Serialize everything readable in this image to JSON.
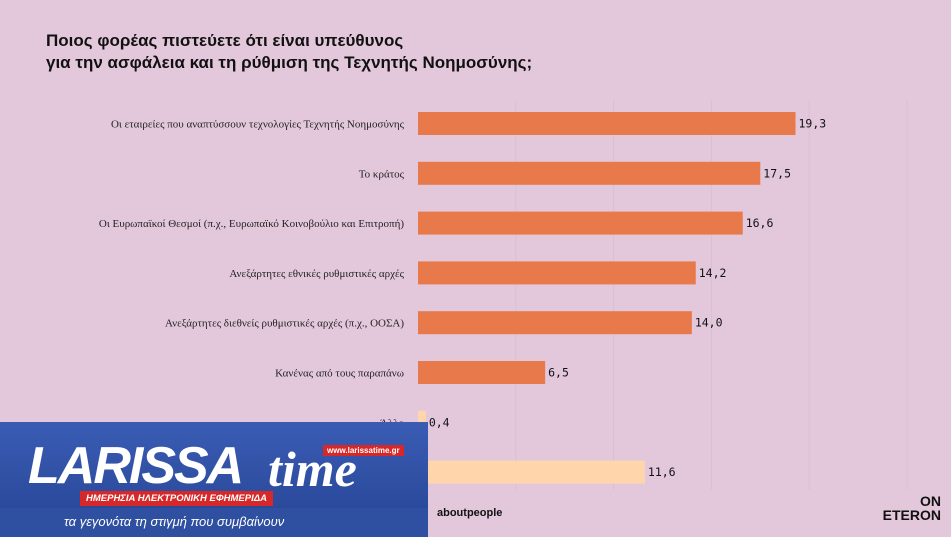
{
  "title": {
    "line1": "Ποιος φορέας πιστεύετε ότι είναι υπεύθυνος",
    "line2": "για την ασφάλεια και τη ρύθμιση της Τεχνητής Νοημοσύνης;"
  },
  "chart_data": {
    "type": "bar",
    "orientation": "horizontal",
    "title": "Ποιος φορέας πιστεύετε ότι είναι υπεύθυνος για την ασφάλεια και τη ρύθμιση της Τεχνητής Νοημοσύνης;",
    "categories": [
      "Οι εταιρείες που αναπτύσσουν τεχνολογίες Τεχνητής Νοημοσύνης",
      "Το κράτος",
      "Οι Ευρωπαϊκοί Θεσμοί (π.χ., Ευρωπαϊκό Κοινοβούλιο και Επιτροπή)",
      "Ανεξάρτητες εθνικές ρυθμιστικές αρχές",
      "Ανεξάρτητες διεθνείς ρυθμιστικές αρχές (π.χ., ΟΟΣΑ)",
      "Κανένας από τους παραπάνω",
      "Άλλο",
      ""
    ],
    "values": [
      19.3,
      17.5,
      16.6,
      14.2,
      14.0,
      6.5,
      0.4,
      11.6
    ],
    "value_labels": [
      "19,3",
      "17,5",
      "16,6",
      "14,2",
      "14,0",
      "6,5",
      "0,4",
      "11,6"
    ],
    "xlim": [
      0,
      25
    ],
    "grid": true,
    "colors": [
      "#e8794a",
      "#e8794a",
      "#e8794a",
      "#e8794a",
      "#e8794a",
      "#e8794a",
      "#ffd6ac",
      "#ffd6ac"
    ]
  },
  "logo": {
    "main": "LARISSA",
    "time": "time",
    "url": "www.larissatime.gr",
    "subtitle": "ΗΜΕΡΗΣΙΑ ΗΛΕΚΤΡΟΝΙΚΗ ΕΦΗΜΕΡΙΔΑ",
    "tagline": "τα γεγονότα τη στιγμή που συμβαίνουν"
  },
  "footer": {
    "source": "aboutpeople",
    "brand_line1": "ON",
    "brand_line2": "ETERON"
  },
  "colors": {
    "background": "#e3c8dc",
    "bar_main": "#e8794a",
    "bar_light": "#ffd6ac",
    "logo_blue": "#2f4fa0",
    "logo_red": "#d62828"
  }
}
